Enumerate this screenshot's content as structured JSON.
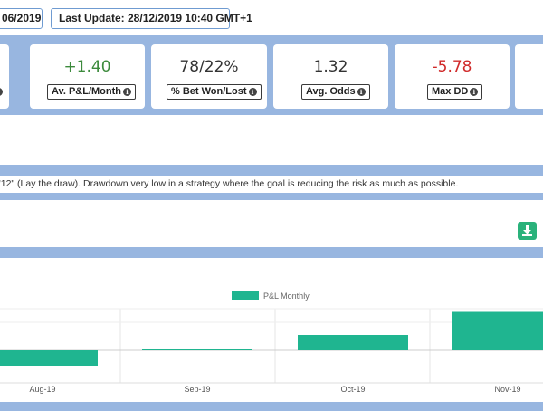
{
  "header": {
    "start_date": "06/2019",
    "last_update": "Last Update: 28/12/2019 10:40 GMT+1"
  },
  "stats": [
    {
      "value": "+1.40",
      "label": "Av. P&L/Month",
      "tone": "positive"
    },
    {
      "value": "78/22%",
      "label": "% Bet Won/Lost",
      "tone": "neutral"
    },
    {
      "value": "1.32",
      "label": "Avg. Odds",
      "tone": "neutral"
    },
    {
      "value": "-5.78",
      "label": "Max DD",
      "tone": "negative"
    }
  ],
  "note": "\"12\" (Lay the draw). Drawdown very low in a strategy where the goal is reducing the risk as much as possible.",
  "download": {
    "icon": "download-icon",
    "color": "#2ab27b"
  },
  "colors": {
    "accent_band": "#98b6e0",
    "bar": "#1fb590",
    "positive": "#3c8a3c",
    "negative": "#d02a2a"
  },
  "chart_data": {
    "type": "bar",
    "legend": "P&L Monthly",
    "legend_position": "top-center",
    "categories": [
      "Aug-19",
      "Sep-19",
      "Oct-19",
      "Nov-19"
    ],
    "values": [
      -1.0,
      0.05,
      1.0,
      2.5
    ],
    "grid": true
  }
}
